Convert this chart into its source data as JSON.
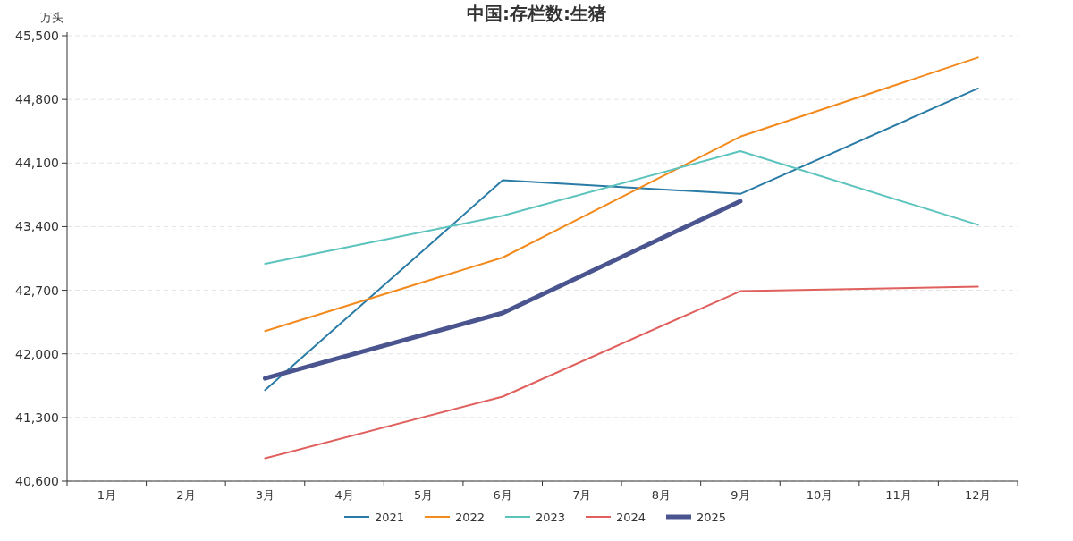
{
  "chart_data": {
    "type": "line",
    "title": "中国:存栏数:生猪",
    "ylabel": "万头",
    "categories": [
      "1月",
      "2月",
      "3月",
      "4月",
      "5月",
      "6月",
      "7月",
      "8月",
      "9月",
      "10月",
      "11月",
      "12月"
    ],
    "series": [
      {
        "name": "2021",
        "color": "#2a7ba6",
        "values": [
          null,
          null,
          41600,
          null,
          null,
          43910,
          null,
          null,
          43760,
          null,
          null,
          44920
        ]
      },
      {
        "name": "2022",
        "color": "#f28a1e",
        "values": [
          null,
          null,
          42250,
          null,
          null,
          43060,
          null,
          null,
          44390,
          null,
          null,
          45260
        ]
      },
      {
        "name": "2023",
        "color": "#5cc3bd",
        "values": [
          null,
          null,
          42990,
          null,
          null,
          43520,
          null,
          null,
          44230,
          null,
          null,
          43420
        ]
      },
      {
        "name": "2024",
        "color": "#e0605e",
        "values": [
          null,
          null,
          40850,
          null,
          null,
          41530,
          null,
          null,
          42690,
          null,
          null,
          42740
        ]
      },
      {
        "name": "2025",
        "color": "#4a5590",
        "values": [
          null,
          null,
          41730,
          null,
          null,
          42450,
          null,
          null,
          43680,
          null,
          null,
          null
        ]
      }
    ],
    "ylim": [
      40600,
      45500
    ],
    "yticks": [
      {
        "value": 40600,
        "label": "40,600"
      },
      {
        "value": 41300,
        "label": "41,300"
      },
      {
        "value": 42000,
        "label": "42,000"
      },
      {
        "value": 42700,
        "label": "42,700"
      },
      {
        "value": 43400,
        "label": "43,400"
      },
      {
        "value": 44100,
        "label": "44,100"
      },
      {
        "value": 44800,
        "label": "44,800"
      },
      {
        "value": 45500,
        "label": "45,500"
      }
    ],
    "grid": "y",
    "legend": "bottom",
    "marker": "none",
    "line_style": "solid"
  }
}
